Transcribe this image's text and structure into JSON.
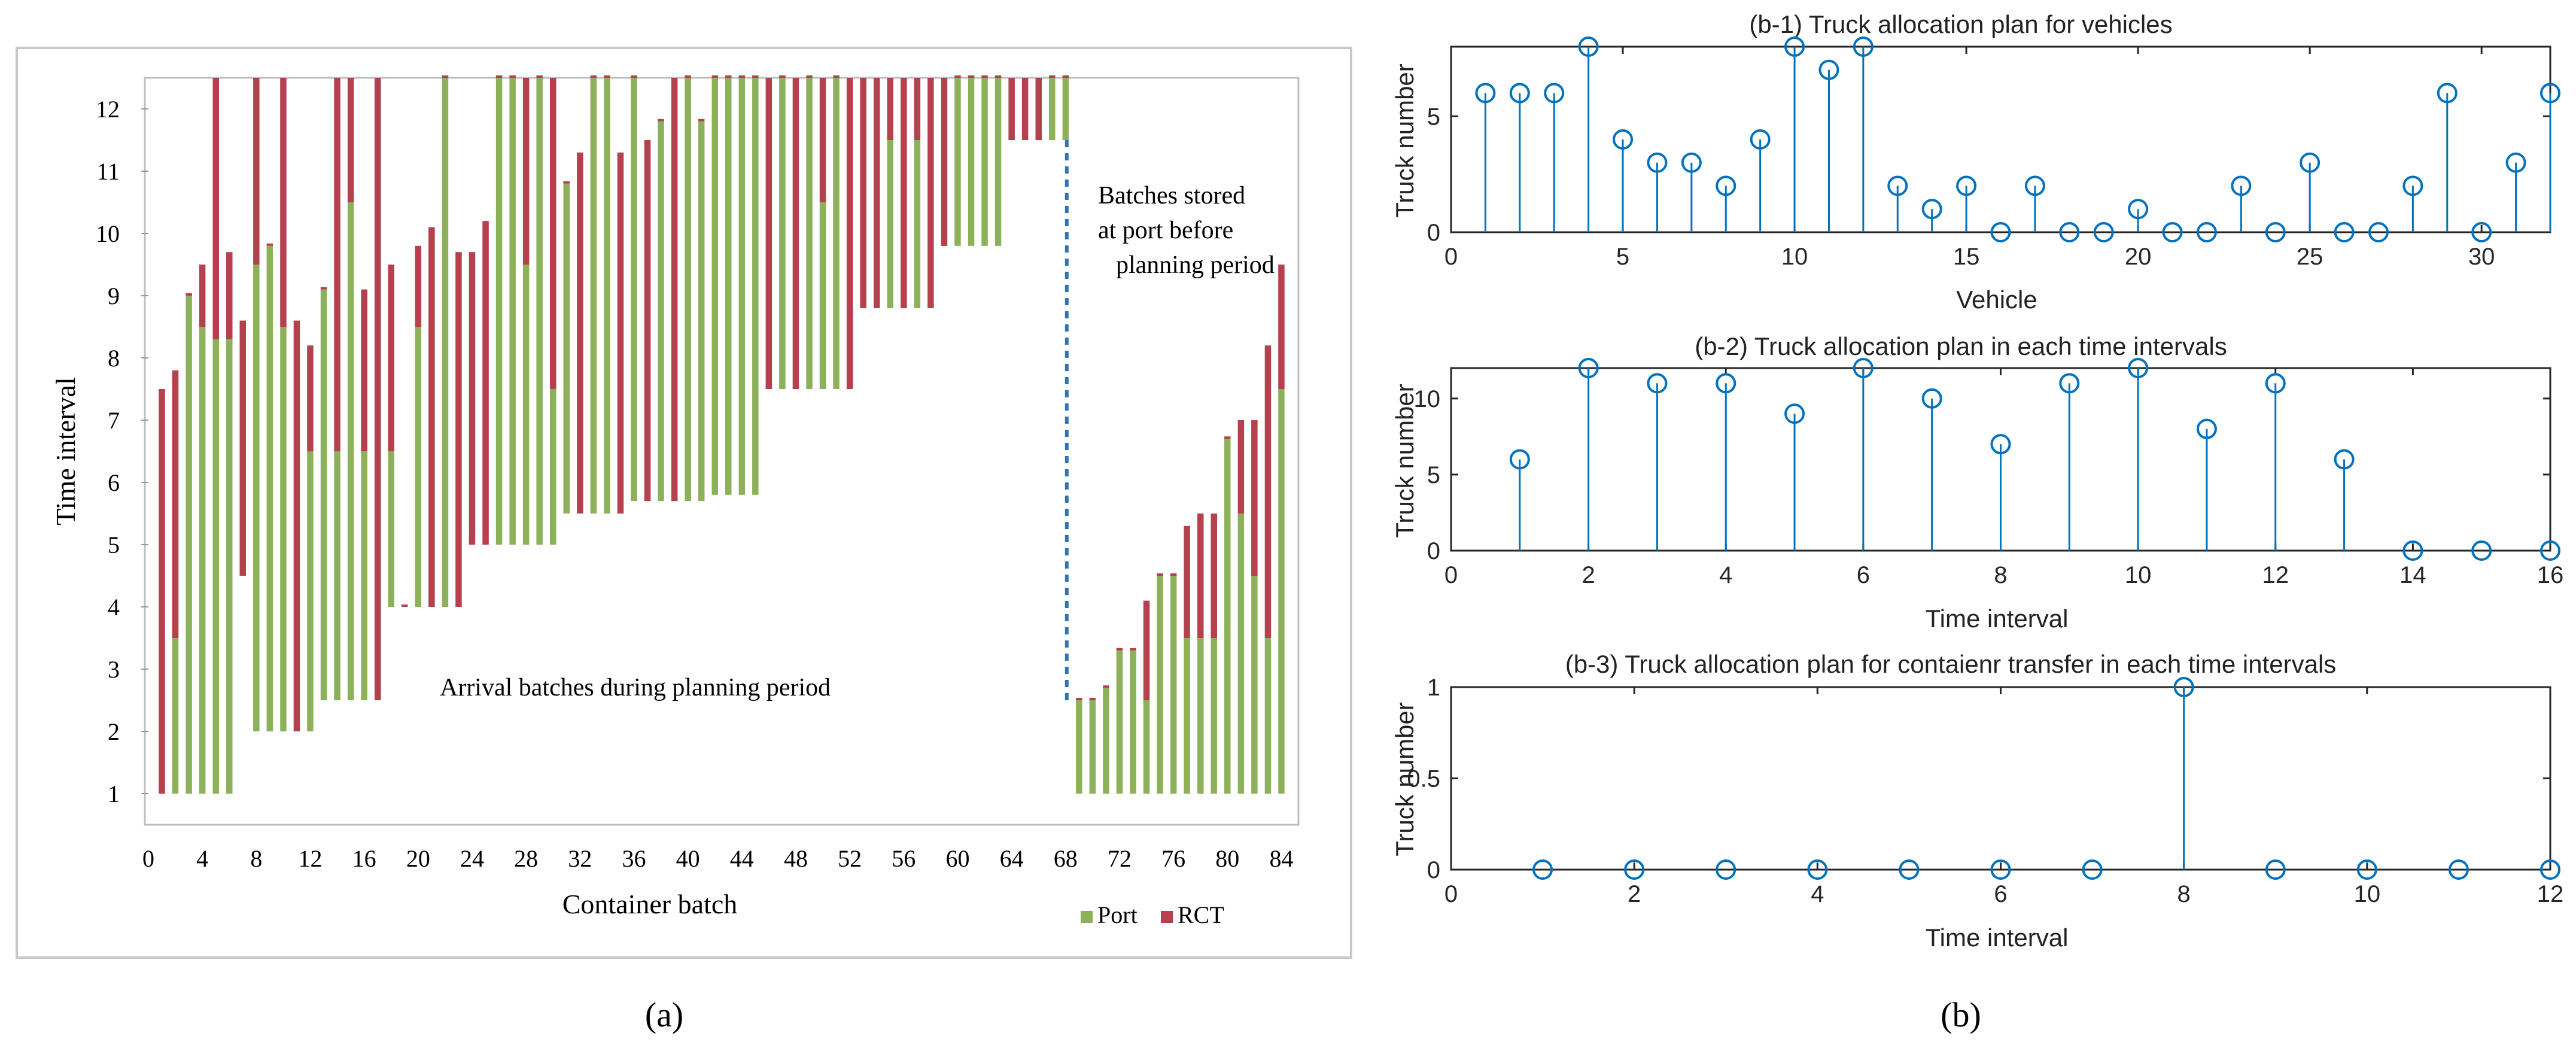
{
  "colors": {
    "port": "#8DB05A",
    "rct": "#B5404E",
    "stem": "#0072BD",
    "dashed": "#2E75B6",
    "frame": "#C8C8C8",
    "axis": "#404040"
  },
  "chart_data": [
    {
      "id": "a",
      "type": "bar",
      "subtype": "floating-stacked-bar",
      "panel_label": "(a)",
      "xlabel": "Container batch",
      "ylabel": "Time interval",
      "xlim": [
        0,
        85
      ],
      "ylim": [
        0.5,
        12.5
      ],
      "xticks": [
        0,
        4,
        8,
        12,
        16,
        20,
        24,
        28,
        32,
        36,
        40,
        44,
        48,
        52,
        56,
        60,
        64,
        68,
        72,
        76,
        80,
        84
      ],
      "yticks": [
        1,
        2,
        3,
        4,
        5,
        6,
        7,
        8,
        9,
        10,
        11,
        12
      ],
      "legend": {
        "position": "bottom-right",
        "port": "Port",
        "rct": "RCT"
      },
      "annotations": {
        "arrival": "Arrival batches during planning period",
        "stored_line1": "Batches stored",
        "stored_line2": "at port before",
        "stored_line3": "planning period"
      },
      "dashed_line": {
        "x": 68,
        "y_from": 2.5,
        "y_to": 11.5
      },
      "series": [
        {
          "name": "Port",
          "key": "port",
          "segments": [
            [
              1,
              1,
              1
            ],
            [
              2,
              1,
              3.5
            ],
            [
              3,
              1,
              9
            ],
            [
              4,
              1,
              8.5
            ],
            [
              5,
              1,
              8.3
            ],
            [
              6,
              1,
              8.3
            ],
            [
              7,
              4.5,
              4.5
            ],
            [
              8,
              2,
              9.5
            ],
            [
              9,
              2,
              9.8
            ],
            [
              10,
              2,
              8.5
            ],
            [
              11,
              2,
              2
            ],
            [
              12,
              2,
              6.5
            ],
            [
              13,
              2.5,
              9.1
            ],
            [
              14,
              2.5,
              6.5
            ],
            [
              15,
              2.5,
              10.5
            ],
            [
              16,
              2.5,
              6.5
            ],
            [
              17,
              2.5,
              2.5
            ],
            [
              18,
              4,
              6.5
            ],
            [
              19,
              4,
              4
            ],
            [
              20,
              4,
              8.5
            ],
            [
              21,
              4,
              4
            ],
            [
              22,
              4,
              12.5
            ],
            [
              23,
              4,
              4
            ],
            [
              24,
              5,
              5
            ],
            [
              25,
              5,
              5
            ],
            [
              26,
              5,
              12.5
            ],
            [
              27,
              5,
              12.5
            ],
            [
              28,
              5,
              9.5
            ],
            [
              29,
              5,
              12.5
            ],
            [
              30,
              5,
              7.5
            ],
            [
              31,
              5.5,
              10.8
            ],
            [
              32,
              5.5,
              5.5
            ],
            [
              33,
              5.5,
              12.5
            ],
            [
              34,
              5.5,
              12.5
            ],
            [
              35,
              5.5,
              5.5
            ],
            [
              36,
              5.7,
              12.5
            ],
            [
              37,
              5.7,
              5.7
            ],
            [
              38,
              5.7,
              11.8
            ],
            [
              39,
              5.7,
              5.7
            ],
            [
              40,
              5.7,
              12.5
            ],
            [
              41,
              5.7,
              11.8
            ],
            [
              42,
              5.8,
              12.5
            ],
            [
              43,
              5.8,
              12.5
            ],
            [
              44,
              5.8,
              12.5
            ],
            [
              45,
              5.8,
              12.5
            ],
            [
              46,
              7.5,
              7.5
            ],
            [
              47,
              7.5,
              12.5
            ],
            [
              48,
              7.5,
              7.5
            ],
            [
              49,
              7.5,
              12.5
            ],
            [
              50,
              7.5,
              10.5
            ],
            [
              51,
              7.5,
              12.5
            ],
            [
              52,
              7.5,
              7.5
            ],
            [
              53,
              8.8,
              8.8
            ],
            [
              54,
              8.8,
              8.8
            ],
            [
              55,
              8.8,
              11.5
            ],
            [
              56,
              8.8,
              8.8
            ],
            [
              57,
              8.8,
              11.5
            ],
            [
              58,
              8.8,
              8.8
            ],
            [
              59,
              9.8,
              9.8
            ],
            [
              60,
              9.8,
              12.5
            ],
            [
              61,
              9.8,
              12.5
            ],
            [
              62,
              9.8,
              12.5
            ],
            [
              63,
              9.8,
              12.5
            ],
            [
              64,
              11.5,
              11.5
            ],
            [
              65,
              11.5,
              11.5
            ],
            [
              66,
              11.5,
              11.5
            ],
            [
              67,
              11.5,
              12.5
            ],
            [
              68,
              11.5,
              12.5
            ],
            [
              69,
              1,
              2.5
            ],
            [
              70,
              1,
              2.5
            ],
            [
              71,
              1,
              2.7
            ],
            [
              72,
              1,
              3.3
            ],
            [
              73,
              1,
              3.3
            ],
            [
              74,
              1,
              2.5
            ],
            [
              75,
              1,
              4.5
            ],
            [
              76,
              1,
              4.5
            ],
            [
              77,
              1,
              3.5
            ],
            [
              78,
              1,
              3.5
            ],
            [
              79,
              1,
              3.5
            ],
            [
              80,
              1,
              6.7
            ],
            [
              81,
              1,
              5.5
            ],
            [
              82,
              1,
              4.5
            ],
            [
              83,
              1,
              3.5
            ],
            [
              84,
              1,
              7.5
            ]
          ]
        },
        {
          "name": "RCT",
          "key": "rct",
          "segments": [
            [
              1,
              1,
              7.5
            ],
            [
              2,
              3.5,
              7.8
            ],
            [
              3,
              9,
              9
            ],
            [
              4,
              8.5,
              9.5
            ],
            [
              5,
              8.3,
              12.5
            ],
            [
              6,
              8.3,
              9.7
            ],
            [
              7,
              4.5,
              8.6
            ],
            [
              8,
              9.5,
              12.5
            ],
            [
              9,
              9.8,
              9.8
            ],
            [
              10,
              8.5,
              12.5
            ],
            [
              11,
              2,
              8.6
            ],
            [
              12,
              6.5,
              8.2
            ],
            [
              13,
              9.1,
              9.1
            ],
            [
              14,
              6.5,
              12.5
            ],
            [
              15,
              10.5,
              12.5
            ],
            [
              16,
              6.5,
              9.1
            ],
            [
              17,
              2.5,
              12.5
            ],
            [
              18,
              6.5,
              9.5
            ],
            [
              19,
              4,
              4
            ],
            [
              20,
              8.5,
              9.8
            ],
            [
              21,
              4,
              10.1
            ],
            [
              22,
              12.5,
              12.5
            ],
            [
              23,
              4,
              9.7
            ],
            [
              24,
              5,
              9.7
            ],
            [
              25,
              5,
              10.2
            ],
            [
              26,
              12.5,
              12.5
            ],
            [
              27,
              12.5,
              12.5
            ],
            [
              28,
              9.5,
              12.5
            ],
            [
              29,
              12.5,
              12.5
            ],
            [
              30,
              7.5,
              12.5
            ],
            [
              31,
              10.8,
              10.8
            ],
            [
              32,
              5.5,
              11.3
            ],
            [
              33,
              12.5,
              12.5
            ],
            [
              34,
              12.5,
              12.5
            ],
            [
              35,
              5.5,
              11.3
            ],
            [
              36,
              12.5,
              12.5
            ],
            [
              37,
              5.7,
              11.5
            ],
            [
              38,
              11.8,
              11.8
            ],
            [
              39,
              5.7,
              12.5
            ],
            [
              40,
              12.5,
              12.5
            ],
            [
              41,
              11.8,
              11.8
            ],
            [
              42,
              12.5,
              12.5
            ],
            [
              43,
              12.5,
              12.5
            ],
            [
              44,
              12.5,
              12.5
            ],
            [
              45,
              12.5,
              12.5
            ],
            [
              46,
              7.5,
              12.5
            ],
            [
              47,
              12.5,
              12.5
            ],
            [
              48,
              7.5,
              12.5
            ],
            [
              49,
              12.5,
              12.5
            ],
            [
              50,
              10.5,
              12.5
            ],
            [
              51,
              12.5,
              12.5
            ],
            [
              52,
              7.5,
              12.5
            ],
            [
              53,
              8.8,
              12.5
            ],
            [
              54,
              8.8,
              12.5
            ],
            [
              55,
              11.5,
              12.5
            ],
            [
              56,
              8.8,
              12.5
            ],
            [
              57,
              11.5,
              12.5
            ],
            [
              58,
              8.8,
              12.5
            ],
            [
              59,
              9.8,
              12.5
            ],
            [
              60,
              12.5,
              12.5
            ],
            [
              61,
              12.5,
              12.5
            ],
            [
              62,
              12.5,
              12.5
            ],
            [
              63,
              12.5,
              12.5
            ],
            [
              64,
              11.5,
              12.5
            ],
            [
              65,
              11.5,
              12.5
            ],
            [
              66,
              11.5,
              12.5
            ],
            [
              67,
              12.5,
              12.5
            ],
            [
              68,
              12.5,
              12.5
            ],
            [
              69,
              2.5,
              2.5
            ],
            [
              70,
              2.5,
              2.5
            ],
            [
              71,
              2.7,
              2.7
            ],
            [
              72,
              3.3,
              3.3
            ],
            [
              73,
              3.3,
              3.3
            ],
            [
              74,
              2.5,
              4.1
            ],
            [
              75,
              4.5,
              4.5
            ],
            [
              76,
              4.5,
              4.5
            ],
            [
              77,
              3.5,
              5.3
            ],
            [
              78,
              3.5,
              5.5
            ],
            [
              79,
              3.5,
              5.5
            ],
            [
              80,
              6.7,
              6.7
            ],
            [
              81,
              5.5,
              7
            ],
            [
              82,
              4.5,
              7
            ],
            [
              83,
              3.5,
              8.2
            ],
            [
              84,
              7.5,
              9.5
            ]
          ]
        }
      ]
    },
    {
      "id": "b1",
      "type": "stem",
      "title": "(b-1) Truck allocation plan for vehicles",
      "xlabel": "Vehicle",
      "ylabel": "Truck number",
      "xlim": [
        0,
        32
      ],
      "ylim": [
        0,
        8
      ],
      "xticks": [
        0,
        5,
        10,
        15,
        20,
        25,
        30
      ],
      "yticks": [
        0,
        5
      ],
      "x": [
        1,
        2,
        3,
        4,
        5,
        6,
        7,
        8,
        9,
        10,
        11,
        12,
        13,
        14,
        15,
        16,
        17,
        18,
        19,
        20,
        21,
        22,
        23,
        24,
        25,
        26,
        27,
        28,
        29,
        30,
        31,
        32
      ],
      "y": [
        6,
        6,
        6,
        8,
        4,
        3,
        3,
        2,
        4,
        8,
        7,
        8,
        2,
        1,
        2,
        0,
        2,
        0,
        0,
        1,
        0,
        0,
        2,
        0,
        3,
        0,
        0,
        2,
        6,
        0,
        3,
        6
      ]
    },
    {
      "id": "b2",
      "type": "stem",
      "title": "(b-2) Truck allocation plan in each time intervals",
      "xlabel": "Time interval",
      "ylabel": "Truck number",
      "xlim": [
        0,
        16
      ],
      "ylim": [
        0,
        12
      ],
      "xticks": [
        0,
        2,
        4,
        6,
        8,
        10,
        12,
        14,
        16
      ],
      "yticks": [
        0,
        5,
        10
      ],
      "x": [
        1,
        2,
        3,
        4,
        5,
        6,
        7,
        8,
        9,
        10,
        11,
        12,
        13,
        14,
        15,
        16
      ],
      "y": [
        6,
        12,
        11,
        11,
        9,
        12,
        10,
        7,
        11,
        12,
        8,
        11,
        6,
        0,
        0,
        0
      ]
    },
    {
      "id": "b3",
      "type": "stem",
      "title": "(b-3) Truck allocation plan for contaienr transfer in each time intervals",
      "xlabel": "Time interval",
      "ylabel": "Truck number",
      "xlim": [
        0,
        12
      ],
      "ylim": [
        0,
        1
      ],
      "xticks": [
        0,
        2,
        4,
        6,
        8,
        10,
        12
      ],
      "yticks": [
        0,
        0.5,
        1
      ],
      "x": [
        1,
        2,
        3,
        4,
        5,
        6,
        7,
        8,
        9,
        10,
        11,
        12
      ],
      "y": [
        0,
        0,
        0,
        0,
        0,
        0,
        0,
        1,
        0,
        0,
        0,
        0
      ],
      "panel_label": "(b)"
    }
  ]
}
